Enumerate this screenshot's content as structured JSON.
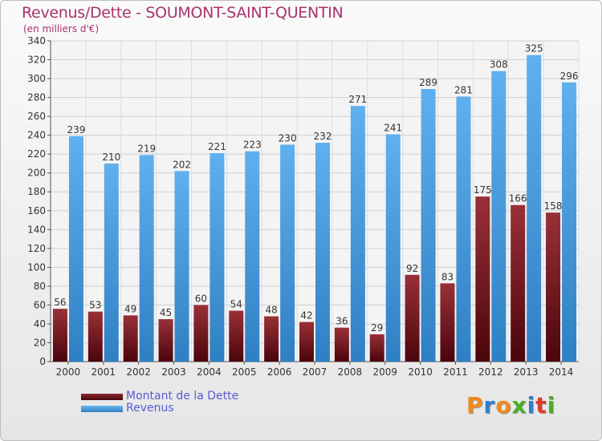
{
  "header": {
    "title": "Revenus/Dette - SOUMONT-SAINT-QUENTIN",
    "subtitle": "(en milliers d'€)"
  },
  "legend": {
    "items": [
      {
        "label": "Montant de la Dette",
        "color": "#6e0f17"
      },
      {
        "label": "Revenus",
        "color": "#3e96d8"
      }
    ]
  },
  "brand": {
    "letters": [
      {
        "char": "P",
        "color": "#f08a1d"
      },
      {
        "char": "r",
        "color": "#2f7fd1"
      },
      {
        "char": "o",
        "color": "#f08a1d"
      },
      {
        "char": "x",
        "color": "#4caf27"
      },
      {
        "char": "i",
        "color": "#2f7fd1"
      },
      {
        "char": "t",
        "color": "#e23a2c"
      },
      {
        "char": "i",
        "color": "#4caf27"
      }
    ]
  },
  "chart_data": {
    "type": "bar",
    "title": "Revenus/Dette - SOUMONT-SAINT-QUENTIN",
    "subtitle": "(en milliers d'€)",
    "categories": [
      "2000",
      "2001",
      "2002",
      "2003",
      "2004",
      "2005",
      "2006",
      "2007",
      "2008",
      "2009",
      "2010",
      "2011",
      "2012",
      "2013",
      "2014"
    ],
    "series": [
      {
        "name": "Montant de la Dette",
        "color": "#6e0f17",
        "values": [
          56,
          53,
          49,
          45,
          60,
          54,
          48,
          42,
          36,
          29,
          92,
          83,
          175,
          166,
          158
        ]
      },
      {
        "name": "Revenus",
        "color": "#3e96d8",
        "values": [
          239,
          210,
          219,
          202,
          221,
          223,
          230,
          232,
          271,
          241,
          289,
          281,
          308,
          325,
          296
        ]
      }
    ],
    "ylim": [
      0,
      340
    ],
    "yticks": [
      0,
      20,
      40,
      60,
      80,
      100,
      120,
      140,
      160,
      180,
      200,
      220,
      240,
      260,
      280,
      300,
      320,
      340
    ],
    "grid": true,
    "legend_position": "bottom-left"
  }
}
